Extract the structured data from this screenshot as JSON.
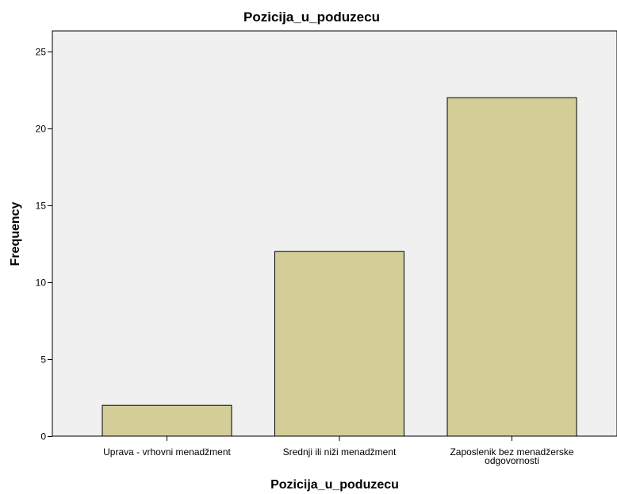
{
  "chart_data": {
    "type": "bar",
    "title": "Pozicija_u_poduzecu",
    "xlabel": "Pozicija_u_poduzecu",
    "ylabel": "Frequency",
    "categories": [
      [
        "Uprava - vrhovni menadžment"
      ],
      [
        "Srednji ili niži menadžment"
      ],
      [
        "Zaposlenik bez menadžerske",
        "odgovornosti"
      ]
    ],
    "values": [
      2,
      12,
      22
    ],
    "ylim": [
      0,
      26
    ],
    "yticks": [
      0,
      5,
      10,
      15,
      20,
      25
    ],
    "grid": false,
    "colors": {
      "bar_fill": "#d3ce97",
      "bar_stroke": "#000000",
      "plot_background": "#f0f0f0"
    }
  }
}
